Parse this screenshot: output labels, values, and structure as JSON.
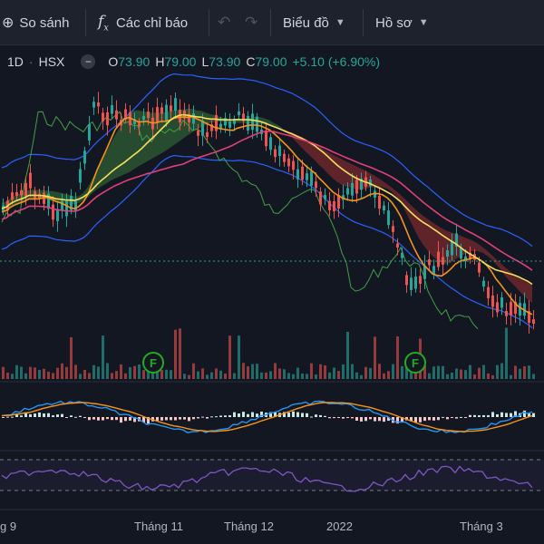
{
  "toolbar": {
    "compare_label": "So sánh",
    "indicators_label": "Các chỉ báo",
    "chart_type_label": "Biểu đồ",
    "profile_label": "Hồ sơ"
  },
  "legend": {
    "interval": "1D",
    "exchange": "HSX",
    "open_label": "O",
    "open": "73.90",
    "high_label": "H",
    "high": "79.00",
    "low_label": "L",
    "low": "73.90",
    "close_label": "C",
    "close": "79.00",
    "change": "+5.10 (+6.90%)"
  },
  "colors": {
    "background": "#131722",
    "up": "#26a69a",
    "down": "#ef5350",
    "cloud_up": "#2e5e34",
    "cloud_down": "#7a2a2e",
    "ema_fast": "#f7931a",
    "ema_slow": "#f6e05e",
    "bollinger": "#2962ff",
    "rsi": "#7e57c2",
    "earnings_marker": "#22ab22"
  },
  "markers": [
    {
      "letter": "F",
      "position": "nov"
    },
    {
      "letter": "F",
      "position": "jan"
    }
  ],
  "xaxis": {
    "labels": [
      "g 9",
      "Tháng 11",
      "Tháng 12",
      "2022",
      "Tháng 3"
    ]
  },
  "chart_data": {
    "type": "candlestick",
    "panes": [
      "price",
      "volume",
      "macd",
      "rsi"
    ],
    "ohlc_last": {
      "open": 73.9,
      "high": 79.0,
      "low": 73.9,
      "close": 79.0
    },
    "legend_position": "top-left",
    "grid": false
  }
}
